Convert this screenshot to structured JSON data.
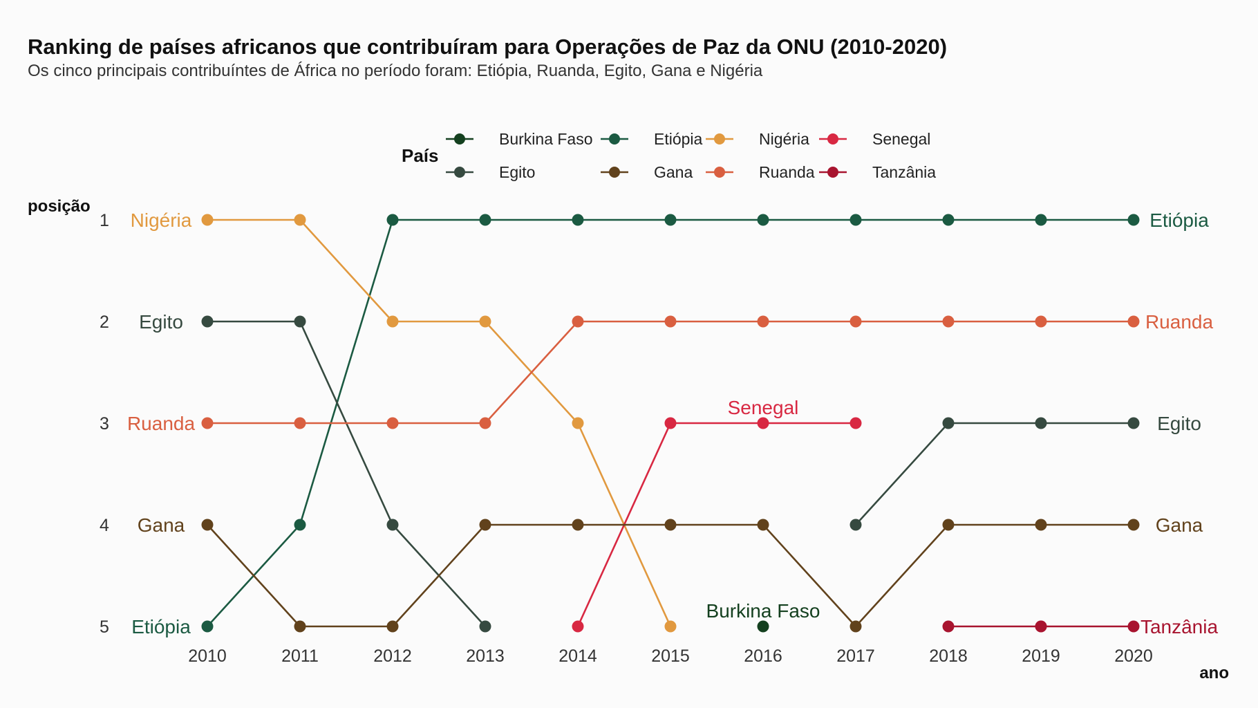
{
  "chart_data": {
    "type": "line",
    "title": "Ranking de países africanos que contribuíram para Operações de Paz da ONU (2010-2020)",
    "subtitle": "Os cinco principais contribuíntes de África no período foram: Etiópia, Ruanda, Egito, Gana e Nigéria",
    "xlabel": "ano",
    "ylabel": "posição",
    "x": [
      2010,
      2011,
      2012,
      2013,
      2014,
      2015,
      2016,
      2017,
      2018,
      2019,
      2020
    ],
    "y_ticks": [
      1,
      2,
      3,
      4,
      5
    ],
    "y_reversed": true,
    "grid": false,
    "legend": {
      "title": "País",
      "placement": "top",
      "entries": [
        "Burkina Faso",
        "Etiópia",
        "Nigéria",
        "Senegal",
        "Egito",
        "Gana",
        "Ruanda",
        "Tanzânia"
      ]
    },
    "series": [
      {
        "name": "Burkina Faso",
        "color": "#14401f",
        "values": [
          null,
          null,
          null,
          null,
          null,
          null,
          5,
          null,
          null,
          null,
          null
        ]
      },
      {
        "name": "Etiópia",
        "color": "#1b5a42",
        "values": [
          5,
          4,
          1,
          1,
          1,
          1,
          1,
          1,
          1,
          1,
          1
        ]
      },
      {
        "name": "Nigéria",
        "color": "#e1993f",
        "values": [
          1,
          1,
          2,
          2,
          3,
          5,
          null,
          null,
          null,
          null,
          null
        ]
      },
      {
        "name": "Senegal",
        "color": "#d82842",
        "values": [
          null,
          null,
          null,
          null,
          5,
          3,
          3,
          3,
          null,
          5,
          null
        ]
      },
      {
        "name": "Egito",
        "color": "#364a40",
        "values": [
          2,
          2,
          4,
          5,
          null,
          null,
          null,
          4,
          3,
          3,
          3
        ]
      },
      {
        "name": "Gana",
        "color": "#61421c",
        "values": [
          4,
          5,
          5,
          4,
          4,
          4,
          4,
          5,
          4,
          4,
          4
        ]
      },
      {
        "name": "Ruanda",
        "color": "#d95f40",
        "values": [
          3,
          3,
          3,
          3,
          2,
          2,
          2,
          2,
          2,
          2,
          2
        ]
      },
      {
        "name": "Tanzânia",
        "color": "#a8142f",
        "values": [
          null,
          null,
          null,
          null,
          null,
          null,
          null,
          null,
          5,
          5,
          5
        ]
      }
    ],
    "labels_left": [
      {
        "name": "Nigéria",
        "rank": 1
      },
      {
        "name": "Egito",
        "rank": 2
      },
      {
        "name": "Ruanda",
        "rank": 3
      },
      {
        "name": "Gana",
        "rank": 4
      },
      {
        "name": "Etiópia",
        "rank": 5
      }
    ],
    "labels_right": [
      {
        "name": "Etiópia",
        "rank": 1
      },
      {
        "name": "Ruanda",
        "rank": 2
      },
      {
        "name": "Egito",
        "rank": 3
      },
      {
        "name": "Gana",
        "rank": 4
      },
      {
        "name": "Tanzânia",
        "rank": 5
      }
    ],
    "annotations": [
      {
        "name": "Senegal",
        "year": 2016,
        "rank": 3
      },
      {
        "name": "Burkina Faso",
        "year": 2016,
        "rank": 5
      }
    ]
  }
}
